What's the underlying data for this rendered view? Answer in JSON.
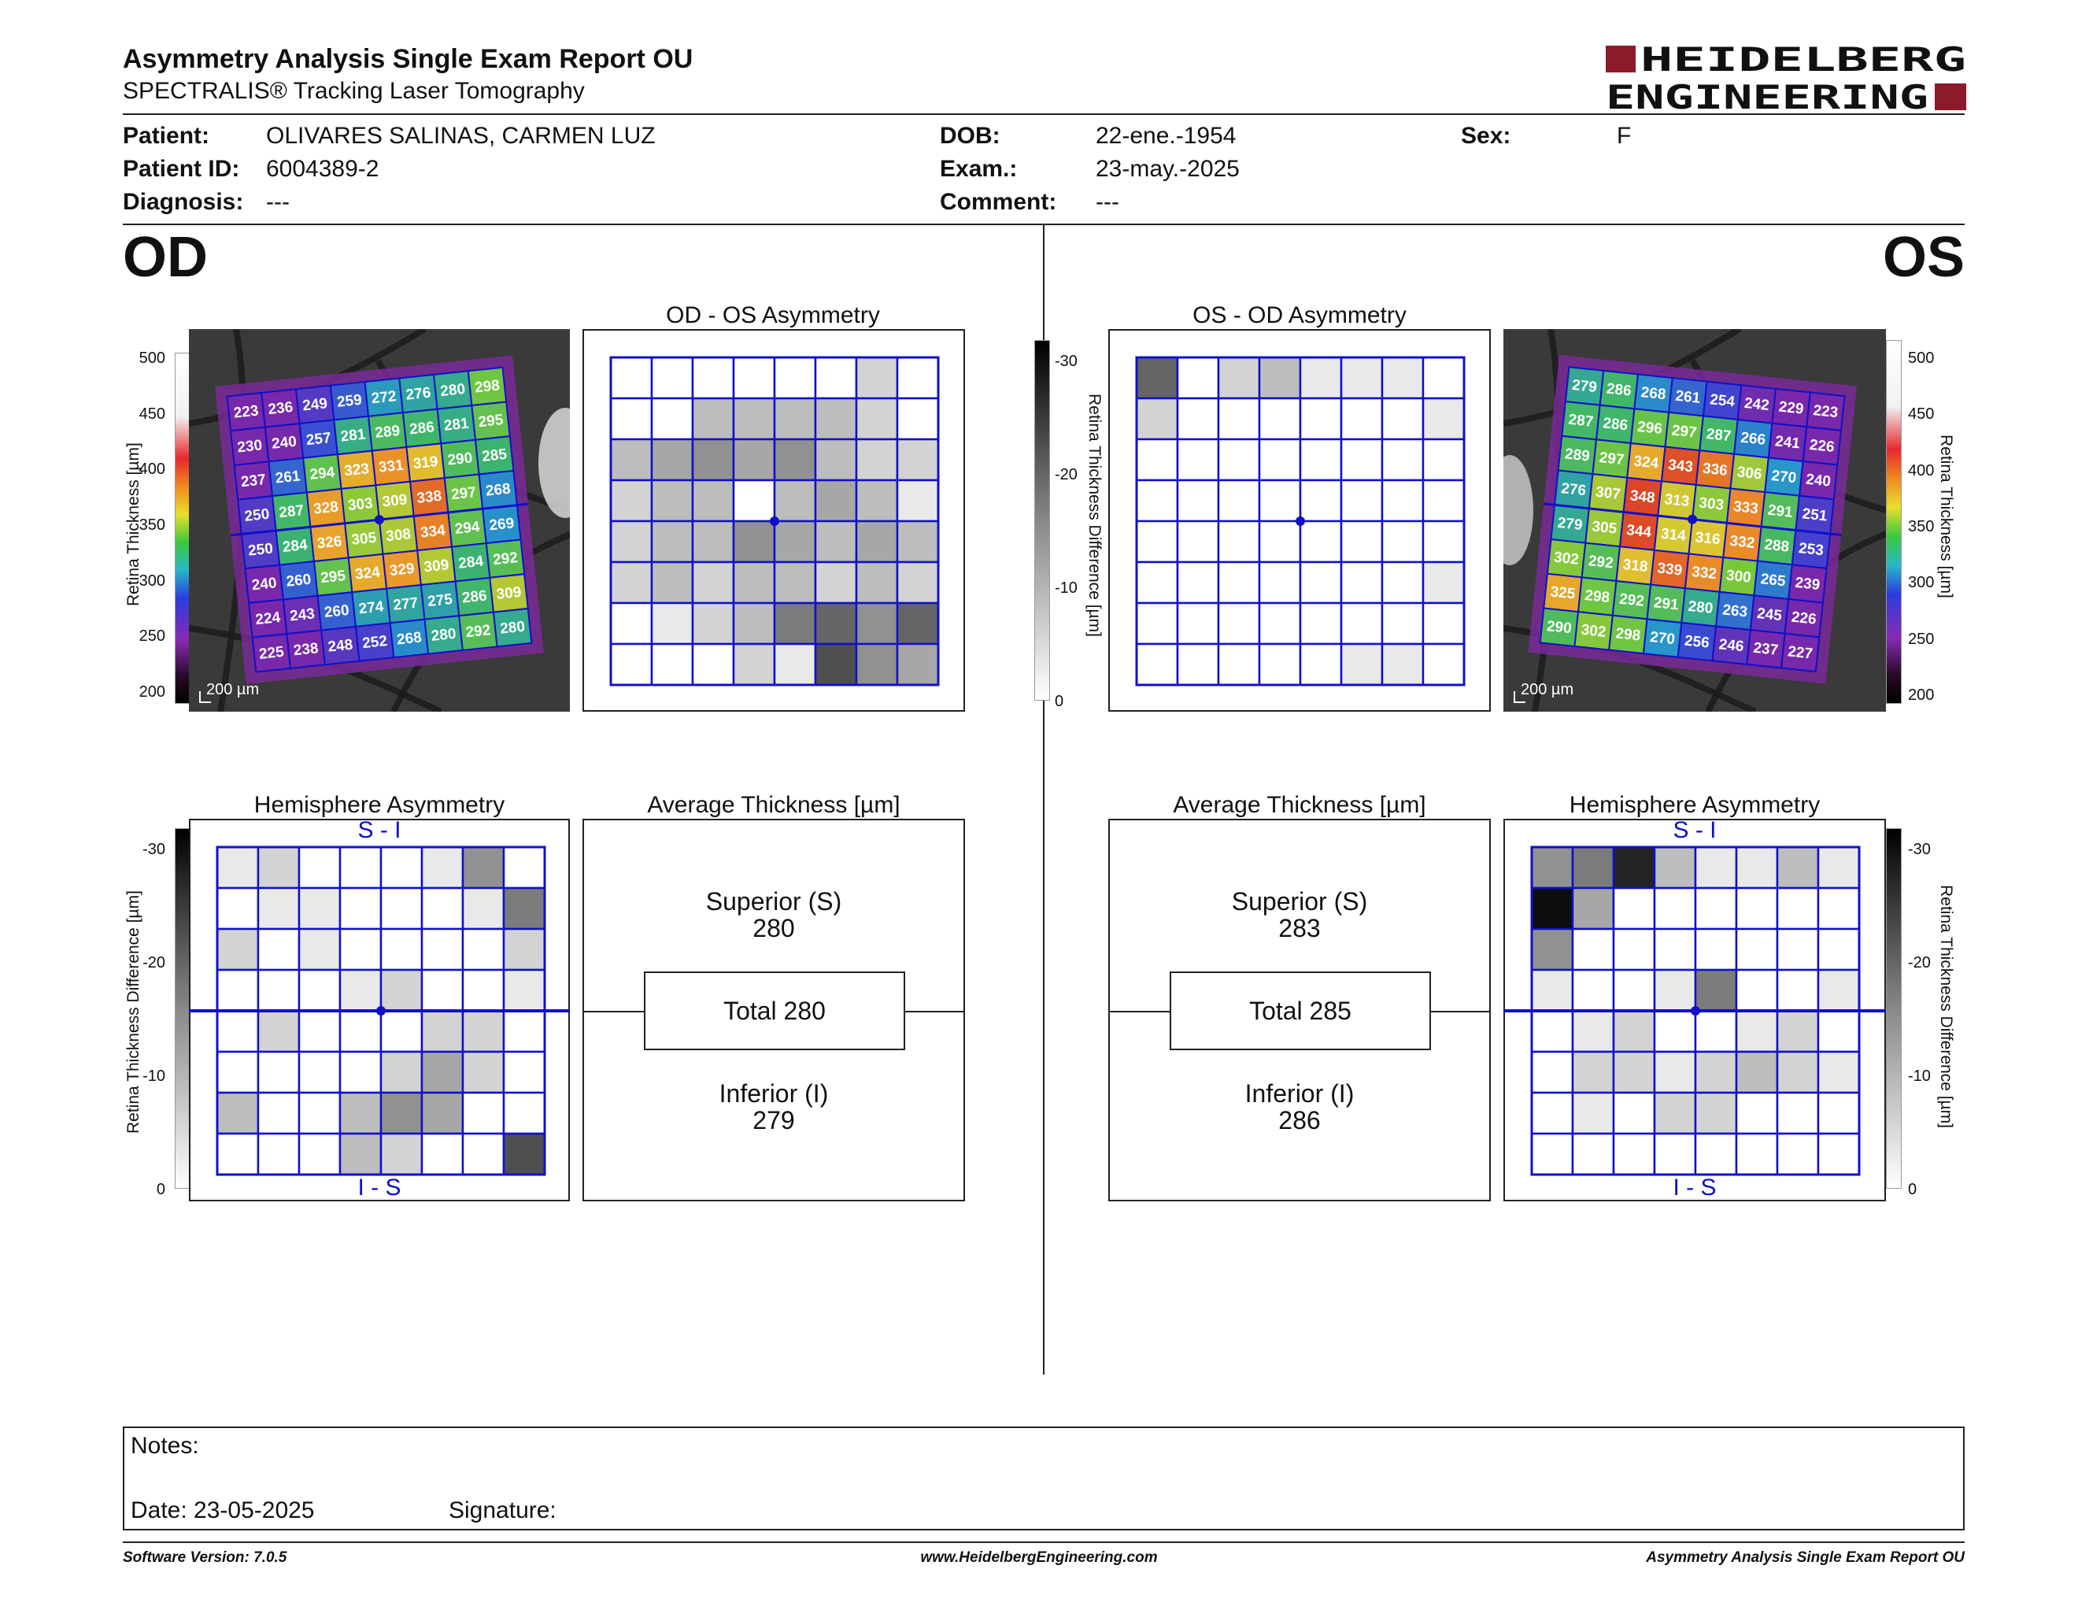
{
  "report": {
    "title": "Asymmetry Analysis Single Exam Report OU",
    "subtitle": "SPECTRALIS® Tracking Laser Tomography",
    "logo_line1": "HEIDELBERG",
    "logo_line2": "ENGINEERING",
    "brand_color": "#8b1a2b"
  },
  "patient": {
    "patient_label": "Patient:",
    "patient_value": "OLIVARES SALINAS, CARMEN LUZ",
    "id_label": "Patient ID:",
    "id_value": "6004389-2",
    "diag_label": "Diagnosis:",
    "diag_value": "---",
    "dob_label": "DOB:",
    "dob_value": "22-ene.-1954",
    "exam_label": "Exam.:",
    "exam_value": "23-may.-2025",
    "comment_label": "Comment:",
    "comment_value": "---",
    "sex_label": "Sex:",
    "sex_value": "F"
  },
  "od": {
    "eye_label": "OD",
    "asym_title": "OD - OS Asymmetry",
    "hemi_title": "Hemisphere Asymmetry",
    "avg_title": "Average Thickness [µm]",
    "superior_label": "Superior (S)",
    "superior_value": "280",
    "total_label": "Total 280",
    "inferior_label": "Inferior (I)",
    "inferior_value": "279",
    "hemi_top": "S - I",
    "hemi_bottom": "I - S",
    "scale_bar": "200 µm",
    "thickness_grid": [
      [
        223,
        236,
        249,
        259,
        272,
        276,
        280,
        298
      ],
      [
        230,
        240,
        257,
        281,
        289,
        286,
        281,
        295
      ],
      [
        237,
        261,
        294,
        323,
        331,
        319,
        290,
        285
      ],
      [
        250,
        287,
        328,
        303,
        309,
        338,
        297,
        268
      ],
      [
        250,
        284,
        326,
        305,
        308,
        334,
        294,
        269
      ],
      [
        240,
        260,
        295,
        324,
        329,
        309,
        284,
        292
      ],
      [
        224,
        243,
        260,
        274,
        277,
        275,
        286,
        309
      ],
      [
        225,
        238,
        248,
        252,
        268,
        280,
        292,
        280
      ]
    ],
    "asym_shades": [
      [
        0,
        0,
        0,
        0,
        0,
        0,
        2,
        0
      ],
      [
        0,
        0,
        3,
        3,
        3,
        3,
        2,
        0
      ],
      [
        3,
        4,
        5,
        4,
        5,
        3,
        2,
        2
      ],
      [
        2,
        3,
        3,
        0,
        3,
        4,
        3,
        1
      ],
      [
        2,
        3,
        3,
        5,
        4,
        3,
        4,
        3
      ],
      [
        2,
        3,
        2,
        3,
        3,
        2,
        3,
        2
      ],
      [
        0,
        1,
        2,
        3,
        6,
        7,
        5,
        7
      ],
      [
        0,
        0,
        0,
        2,
        1,
        8,
        5,
        4
      ]
    ],
    "hemi_shades": [
      [
        1,
        2,
        0,
        0,
        0,
        1,
        5,
        0
      ],
      [
        0,
        1,
        1,
        0,
        0,
        0,
        1,
        6
      ],
      [
        2,
        0,
        1,
        0,
        0,
        0,
        0,
        2
      ],
      [
        0,
        0,
        0,
        1,
        2,
        0,
        0,
        1
      ],
      [
        0,
        2,
        0,
        0,
        0,
        2,
        2,
        0
      ],
      [
        0,
        0,
        0,
        0,
        2,
        4,
        2,
        0
      ],
      [
        3,
        0,
        0,
        3,
        5,
        4,
        0,
        0
      ],
      [
        0,
        0,
        0,
        3,
        2,
        0,
        0,
        8
      ]
    ]
  },
  "os": {
    "eye_label": "OS",
    "asym_title": "OS - OD Asymmetry",
    "hemi_title": "Hemisphere Asymmetry",
    "avg_title": "Average Thickness [µm]",
    "superior_label": "Superior (S)",
    "superior_value": "283",
    "total_label": "Total 285",
    "inferior_label": "Inferior (I)",
    "inferior_value": "286",
    "hemi_top": "S - I",
    "hemi_bottom": "I - S",
    "scale_bar": "200 µm",
    "thickness_grid": [
      [
        279,
        286,
        268,
        261,
        254,
        242,
        229,
        223
      ],
      [
        287,
        286,
        296,
        297,
        287,
        266,
        241,
        226
      ],
      [
        289,
        297,
        324,
        343,
        336,
        306,
        270,
        240
      ],
      [
        276,
        307,
        348,
        313,
        303,
        333,
        291,
        251
      ],
      [
        279,
        305,
        344,
        314,
        316,
        332,
        288,
        253
      ],
      [
        302,
        292,
        318,
        339,
        332,
        300,
        265,
        239
      ],
      [
        325,
        298,
        292,
        291,
        280,
        263,
        245,
        226
      ],
      [
        290,
        302,
        298,
        270,
        256,
        246,
        237,
        227
      ]
    ],
    "asym_shades": [
      [
        7,
        0,
        2,
        3,
        1,
        1,
        1,
        0
      ],
      [
        2,
        0,
        0,
        0,
        0,
        0,
        0,
        1
      ],
      [
        0,
        0,
        0,
        0,
        0,
        0,
        0,
        0
      ],
      [
        0,
        0,
        0,
        0,
        0,
        0,
        0,
        0
      ],
      [
        0,
        0,
        0,
        0,
        0,
        0,
        0,
        0
      ],
      [
        0,
        0,
        0,
        0,
        0,
        0,
        0,
        1
      ],
      [
        0,
        0,
        0,
        0,
        0,
        0,
        0,
        0
      ],
      [
        0,
        0,
        0,
        0,
        0,
        1,
        1,
        0
      ]
    ],
    "hemi_shades": [
      [
        5,
        6,
        10,
        3,
        1,
        1,
        3,
        1
      ],
      [
        11,
        4,
        0,
        0,
        0,
        0,
        0,
        0
      ],
      [
        5,
        0,
        0,
        0,
        0,
        0,
        0,
        0
      ],
      [
        1,
        0,
        0,
        1,
        6,
        0,
        0,
        1
      ],
      [
        0,
        1,
        2,
        0,
        0,
        1,
        2,
        0
      ],
      [
        0,
        2,
        2,
        1,
        2,
        3,
        2,
        1
      ],
      [
        0,
        1,
        0,
        2,
        2,
        0,
        0,
        0
      ],
      [
        0,
        0,
        0,
        0,
        0,
        0,
        0,
        0
      ]
    ]
  },
  "scales": {
    "thickness_label": "Retina  Thickness [µm]",
    "thickness_ticks": [
      "500",
      "450",
      "400",
      "350",
      "300",
      "250",
      "200"
    ],
    "diff_label": "Retina Thickness Difference [µm]",
    "diff_ticks": [
      "-30",
      "-20",
      "-10",
      "0"
    ]
  },
  "notes": {
    "notes_label": "Notes:",
    "date_label": "Date: 23-05-2025",
    "signature_label": "Signature:"
  },
  "footer": {
    "software": "Software Version: 7.0.5",
    "website": "www.HeidelbergEngineering.com",
    "report_name": "Asymmetry Analysis Single Exam Report OU"
  }
}
